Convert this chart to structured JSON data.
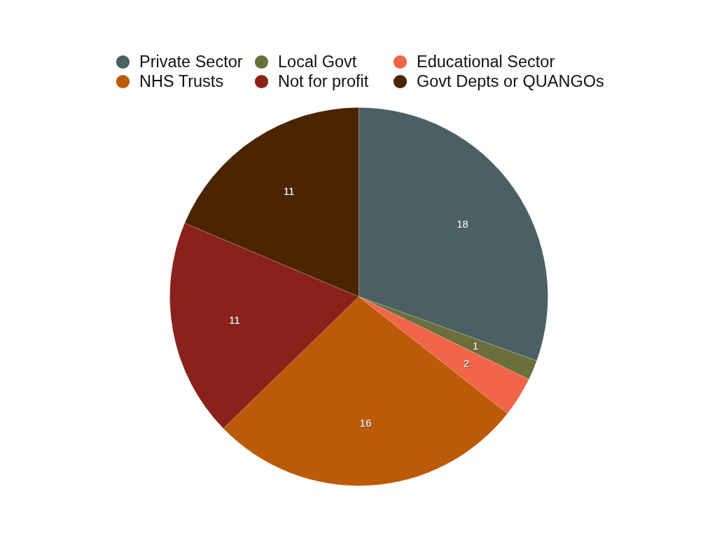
{
  "chart_data": {
    "type": "pie",
    "categories": [
      "Private Sector",
      "Local Govt",
      "Educational Sector",
      "NHS Trusts",
      "Not for profit",
      "Govt Depts or QUANGOs"
    ],
    "values": [
      18,
      1,
      2,
      16,
      11,
      11
    ],
    "colors": [
      "#4a6063",
      "#6b6f3a",
      "#f26548",
      "#bc5a07",
      "#8a211b",
      "#4b2400"
    ],
    "data_labels": true,
    "legend": "top"
  }
}
